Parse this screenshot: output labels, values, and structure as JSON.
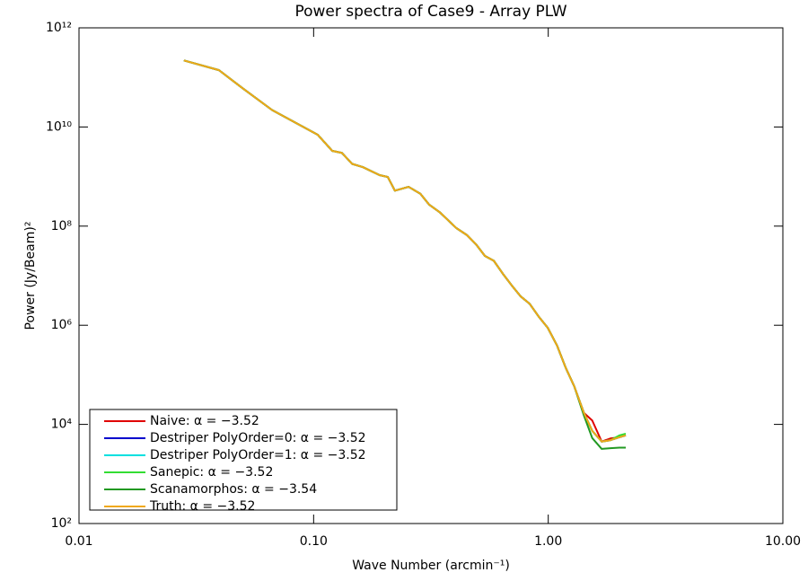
{
  "chart_data": {
    "type": "line",
    "title": "Power spectra of Case9 - Array PLW",
    "x_label": "Wave Number (arcmin⁻¹)",
    "y_label": "Power (Jy/Beam)²",
    "log_x": true,
    "log_y": true,
    "legend": "lower-left",
    "xlim": [
      0.01,
      10
    ],
    "ylim": [
      100,
      1000000000000.0
    ],
    "xticks": [
      {
        "value": 0.01,
        "label": "0.01"
      },
      {
        "value": 0.1,
        "label": "0.10"
      },
      {
        "value": 1,
        "label": "1.00"
      },
      {
        "value": 10,
        "label": "10.00"
      }
    ],
    "yticks": [
      {
        "value": 100,
        "label": "10²"
      },
      {
        "value": 10000,
        "label": "10⁴"
      },
      {
        "value": 1000000,
        "label": "10⁶"
      },
      {
        "value": 100000000,
        "label": "10⁸"
      },
      {
        "value": 10000000000,
        "label": "10¹⁰"
      },
      {
        "value": 1000000000000,
        "label": "10¹²"
      }
    ],
    "x": [
      0.028,
      0.0395,
      0.0497,
      0.0665,
      0.104,
      0.12,
      0.132,
      0.146,
      0.162,
      0.191,
      0.207,
      0.222,
      0.254,
      0.285,
      0.311,
      0.345,
      0.405,
      0.45,
      0.492,
      0.537,
      0.586,
      0.64,
      0.7,
      0.764,
      0.834,
      0.91,
      0.995,
      1.09,
      1.19,
      1.29,
      1.42,
      1.54,
      1.69,
      1.84,
      2.01,
      2.14
    ],
    "series": [
      {
        "name": "Naive: α = −3.52",
        "color": "#e00000",
        "values": [
          220000000000.0,
          140000000000.0,
          61000000000.0,
          22000000000.0,
          7000000000.0,
          3300000000.0,
          3000000000.0,
          1800000000.0,
          1550000000.0,
          1070000000.0,
          980000000.0,
          520000000.0,
          620000000.0,
          450000000.0,
          270000000.0,
          190000000.0,
          92000000.0,
          66000000.0,
          43000000.0,
          25000000.0,
          20000000.0,
          11000000.0,
          6300000.0,
          3800000.0,
          2700000.0,
          1500000.0,
          890000.0,
          390000.0,
          135000.0,
          59000.0,
          17000.0,
          12000.0,
          4500.0,
          5200.0,
          5500.0,
          6000.0
        ]
      },
      {
        "name": "Destriper PolyOrder=0: α = −3.52",
        "color": "#0000cc",
        "values": [
          220000000000.0,
          140000000000.0,
          61000000000.0,
          22000000000.0,
          7000000000.0,
          3300000000.0,
          3000000000.0,
          1800000000.0,
          1550000000.0,
          1070000000.0,
          980000000.0,
          520000000.0,
          620000000.0,
          450000000.0,
          270000000.0,
          190000000.0,
          92000000.0,
          66000000.0,
          43000000.0,
          25000000.0,
          20000000.0,
          11000000.0,
          6300000.0,
          3800000.0,
          2700000.0,
          1500000.0,
          890000.0,
          390000.0,
          135000.0,
          59000.0,
          17000.0,
          7400.0,
          4500.0,
          4800.0,
          5500.0,
          6000.0
        ]
      },
      {
        "name": "Destriper PolyOrder=1: α = −3.52",
        "color": "#00e0e0",
        "values": [
          220000000000.0,
          140000000000.0,
          61000000000.0,
          22000000000.0,
          7000000000.0,
          3300000000.0,
          3000000000.0,
          1800000000.0,
          1550000000.0,
          1070000000.0,
          980000000.0,
          520000000.0,
          620000000.0,
          450000000.0,
          270000000.0,
          190000000.0,
          92000000.0,
          66000000.0,
          43000000.0,
          25000000.0,
          20000000.0,
          11000000.0,
          6300000.0,
          3800000.0,
          2700000.0,
          1500000.0,
          890000.0,
          390000.0,
          135000.0,
          59000.0,
          17000.0,
          7400.0,
          4500.0,
          4800.0,
          5500.0,
          6000.0
        ]
      },
      {
        "name": "Sanepic: α = −3.52",
        "color": "#33dd33",
        "values": [
          220000000000.0,
          140000000000.0,
          61000000000.0,
          22000000000.0,
          7000000000.0,
          3300000000.0,
          3000000000.0,
          1800000000.0,
          1550000000.0,
          1070000000.0,
          980000000.0,
          520000000.0,
          620000000.0,
          450000000.0,
          270000000.0,
          190000000.0,
          92000000.0,
          66000000.0,
          43000000.0,
          25000000.0,
          20000000.0,
          11000000.0,
          6300000.0,
          3800000.0,
          2700000.0,
          1500000.0,
          890000.0,
          390000.0,
          135000.0,
          59000.0,
          17000.0,
          7400.0,
          4500.0,
          4800.0,
          6000.0,
          6500.0
        ]
      },
      {
        "name": "Scanamorphos: α = −3.54",
        "color": "#229922",
        "values": [
          220000000000.0,
          140000000000.0,
          61000000000.0,
          22000000000.0,
          7000000000.0,
          3300000000.0,
          3000000000.0,
          1800000000.0,
          1550000000.0,
          1070000000.0,
          980000000.0,
          520000000.0,
          620000000.0,
          450000000.0,
          270000000.0,
          190000000.0,
          92000000.0,
          66000000.0,
          43000000.0,
          25000000.0,
          20000000.0,
          11000000.0,
          6300000.0,
          3800000.0,
          2700000.0,
          1500000.0,
          890000.0,
          390000.0,
          135000.0,
          59000.0,
          15000.0,
          5300.0,
          3200.0,
          3300.0,
          3400.0,
          3400.0
        ]
      },
      {
        "name": "Truth: α = −3.52",
        "color": "#f0a818",
        "values": [
          220000000000.0,
          140000000000.0,
          61000000000.0,
          22000000000.0,
          7000000000.0,
          3300000000.0,
          3000000000.0,
          1800000000.0,
          1550000000.0,
          1070000000.0,
          980000000.0,
          520000000.0,
          620000000.0,
          450000000.0,
          270000000.0,
          190000000.0,
          92000000.0,
          66000000.0,
          43000000.0,
          25000000.0,
          20000000.0,
          11000000.0,
          6300000.0,
          3800000.0,
          2700000.0,
          1500000.0,
          890000.0,
          390000.0,
          135000.0,
          59000.0,
          17000.0,
          7400.0,
          4500.0,
          4800.0,
          5500.0,
          6000.0
        ]
      }
    ]
  }
}
